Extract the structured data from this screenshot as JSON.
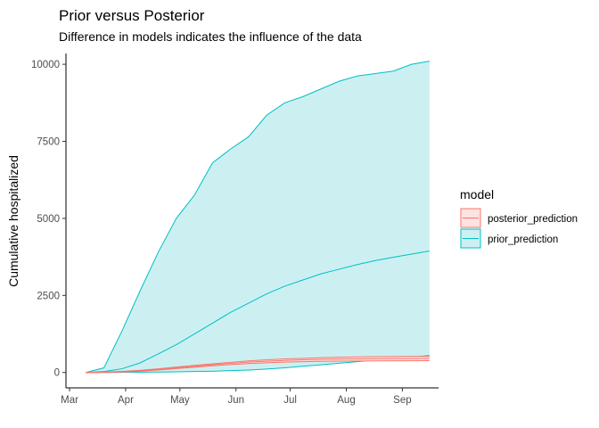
{
  "chart_data": {
    "type": "area",
    "title": "Prior versus Posterior",
    "subtitle": "Difference in models indicates the influence of the data",
    "ylabel": "Cumulative hospitalized",
    "xlabel": "",
    "ylim": [
      -500,
      10350
    ],
    "xlim": [
      "2020-02-28",
      "2020-09-21"
    ],
    "yticks": [
      0,
      2500,
      5000,
      7500,
      10000
    ],
    "ytick_labels": [
      "0",
      "2500",
      "5000",
      "7500",
      "10000"
    ],
    "xticks": [
      "2020-03-01",
      "2020-04-01",
      "2020-05-01",
      "2020-06-01",
      "2020-07-01",
      "2020-08-01",
      "2020-09-01"
    ],
    "xtick_labels": [
      "Mar",
      "Apr",
      "May",
      "Jun",
      "Jul",
      "Aug",
      "Sep"
    ],
    "grid": false,
    "legend": {
      "title": "model",
      "position": "right"
    },
    "series": [
      {
        "name": "prior_prediction",
        "color": "#00BFC4",
        "fill": "#CCF0F2",
        "x": [
          "2020-03-10",
          "2020-03-20",
          "2020-03-30",
          "2020-04-09",
          "2020-04-19",
          "2020-04-29",
          "2020-05-09",
          "2020-05-19",
          "2020-05-29",
          "2020-06-08",
          "2020-06-18",
          "2020-06-28",
          "2020-07-08",
          "2020-07-18",
          "2020-07-28",
          "2020-08-07",
          "2020-08-17",
          "2020-08-27",
          "2020-09-06",
          "2020-09-16"
        ],
        "upper": [
          0,
          150,
          1350,
          2650,
          3900,
          5000,
          5750,
          6800,
          7250,
          7650,
          8350,
          8750,
          8950,
          9200,
          9450,
          9620,
          9700,
          9780,
          10000,
          10100
        ],
        "median": [
          0,
          30,
          120,
          310,
          600,
          900,
          1250,
          1600,
          1950,
          2250,
          2550,
          2800,
          3000,
          3200,
          3350,
          3500,
          3630,
          3740,
          3840,
          3940
        ],
        "lower": [
          0,
          0,
          5,
          10,
          15,
          20,
          30,
          40,
          60,
          80,
          110,
          150,
          200,
          250,
          300,
          350,
          400,
          450,
          500,
          550
        ]
      },
      {
        "name": "posterior_prediction",
        "color": "#F8766D",
        "fill": "#FDE2E0",
        "x": [
          "2020-03-10",
          "2020-03-20",
          "2020-03-30",
          "2020-04-09",
          "2020-04-19",
          "2020-04-29",
          "2020-05-09",
          "2020-05-19",
          "2020-05-29",
          "2020-06-08",
          "2020-06-18",
          "2020-06-28",
          "2020-07-08",
          "2020-07-18",
          "2020-07-28",
          "2020-08-07",
          "2020-08-17",
          "2020-08-27",
          "2020-09-06",
          "2020-09-16"
        ],
        "upper": [
          0,
          12,
          35,
          70,
          120,
          175,
          230,
          280,
          330,
          375,
          410,
          440,
          460,
          480,
          495,
          505,
          512,
          518,
          522,
          525
        ],
        "median": [
          0,
          8,
          25,
          55,
          100,
          150,
          200,
          250,
          295,
          335,
          365,
          390,
          410,
          425,
          435,
          442,
          447,
          450,
          452,
          454
        ],
        "lower": [
          0,
          4,
          15,
          40,
          80,
          125,
          170,
          215,
          255,
          290,
          315,
          335,
          350,
          360,
          368,
          373,
          376,
          378,
          380,
          382
        ]
      }
    ]
  }
}
